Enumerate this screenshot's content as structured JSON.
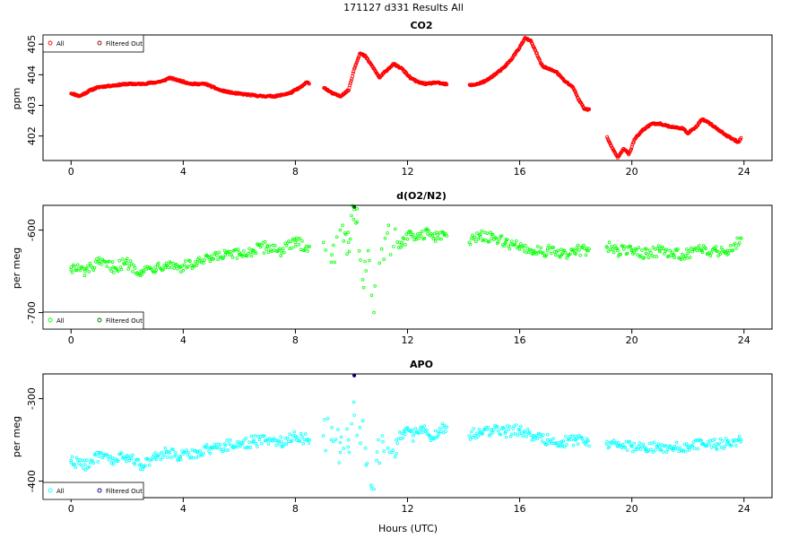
{
  "page": {
    "title": "171127   d331   Results All",
    "xlabel": "Hours (UTC)"
  },
  "legend": {
    "all_label": "All",
    "filtered_label": "Filtered Out"
  },
  "colors": {
    "co2": "#ff0000",
    "o2n2": "#00ff00",
    "apo": "#00ffff",
    "co2_filtered": "#8b0000",
    "o2n2_filtered": "#006400",
    "apo_filtered": "#000080"
  },
  "chart_data": [
    {
      "type": "scatter",
      "title": "CO2",
      "xlabel": "",
      "ylabel": "ppm",
      "xlim": [
        -1,
        25
      ],
      "ylim": [
        401.2,
        405.3
      ],
      "xticks": [
        0,
        4,
        8,
        12,
        16,
        20,
        24
      ],
      "yticks": [
        402,
        403,
        404,
        405
      ],
      "legend_position": "top-left",
      "gaps": [
        [
          8.5,
          9.0
        ],
        [
          13.4,
          14.2
        ],
        [
          18.5,
          19.1
        ]
      ],
      "series_all": {
        "name": "All",
        "color": "#ff0000",
        "x": [
          0.0,
          0.3,
          0.7,
          1.0,
          1.5,
          2.0,
          2.5,
          3.0,
          3.3,
          3.5,
          3.9,
          4.3,
          4.8,
          5.3,
          5.8,
          6.3,
          6.8,
          7.3,
          7.8,
          8.2,
          8.4,
          9.0,
          9.3,
          9.6,
          9.9,
          10.1,
          10.3,
          10.5,
          10.8,
          11.0,
          11.2,
          11.5,
          11.8,
          12.1,
          12.4,
          12.7,
          13.0,
          13.3,
          14.2,
          14.5,
          14.8,
          15.1,
          15.4,
          15.7,
          16.0,
          16.2,
          16.4,
          16.6,
          16.8,
          17.0,
          17.3,
          17.6,
          17.9,
          18.1,
          18.3,
          18.5,
          19.1,
          19.3,
          19.5,
          19.7,
          19.9,
          20.1,
          20.4,
          20.7,
          21.0,
          21.4,
          21.8,
          22.0,
          22.3,
          22.5,
          22.8,
          23.1,
          23.4,
          23.8,
          23.9
        ],
        "y": [
          403.4,
          403.3,
          403.5,
          403.6,
          403.65,
          403.7,
          403.7,
          403.75,
          403.8,
          403.9,
          403.8,
          403.7,
          403.7,
          403.5,
          403.4,
          403.35,
          403.3,
          403.3,
          403.4,
          403.6,
          403.75,
          403.6,
          403.4,
          403.3,
          403.5,
          404.2,
          404.7,
          404.6,
          404.2,
          403.9,
          404.1,
          404.35,
          404.2,
          403.9,
          403.75,
          403.7,
          403.75,
          403.7,
          403.65,
          403.7,
          403.8,
          404.0,
          404.2,
          404.5,
          404.9,
          405.2,
          405.1,
          404.7,
          404.3,
          404.2,
          404.1,
          403.8,
          403.6,
          403.2,
          402.9,
          402.85,
          402.0,
          401.6,
          401.3,
          401.6,
          401.4,
          401.9,
          402.2,
          402.4,
          402.4,
          402.3,
          402.25,
          402.1,
          402.3,
          402.55,
          402.4,
          402.2,
          402.0,
          401.8,
          401.95
        ]
      },
      "series_filtered": {
        "name": "Filtered Out",
        "x": [],
        "y": []
      }
    },
    {
      "type": "scatter",
      "title": "d(O2/N2)",
      "xlabel": "",
      "ylabel": "per meg",
      "xlim": [
        -1,
        25
      ],
      "ylim": [
        -720,
        -570
      ],
      "xticks": [
        0,
        4,
        8,
        12,
        16,
        20,
        24
      ],
      "yticks": [
        -700,
        -600
      ],
      "legend_position": "bottom-left",
      "series_all": {
        "name": "All",
        "color": "#00ff00",
        "x": [
          0.0,
          0.5,
          1.0,
          1.5,
          2.0,
          2.5,
          3.0,
          3.4,
          3.9,
          4.5,
          5.0,
          5.5,
          6.0,
          6.5,
          7.0,
          7.5,
          8.0,
          8.5,
          9.0,
          9.3,
          9.6,
          9.9,
          10.1,
          10.2,
          10.4,
          10.6,
          10.8,
          11.0,
          11.2,
          11.5,
          11.8,
          12.1,
          12.4,
          12.7,
          13.0,
          13.3,
          14.2,
          14.6,
          15.0,
          15.5,
          16.0,
          16.5,
          17.0,
          17.5,
          18.0,
          18.4,
          19.1,
          19.5,
          20.0,
          20.5,
          21.0,
          21.5,
          22.0,
          22.5,
          23.0,
          23.4,
          23.9
        ],
        "y": [
          -645,
          -650,
          -640,
          -645,
          -640,
          -650,
          -645,
          -640,
          -645,
          -640,
          -635,
          -630,
          -630,
          -625,
          -620,
          -625,
          -615,
          -620,
          -615,
          -630,
          -600,
          -615,
          -575,
          -590,
          -660,
          -625,
          -700,
          -640,
          -610,
          -620,
          -615,
          -605,
          -610,
          -600,
          -610,
          -605,
          -615,
          -605,
          -610,
          -615,
          -620,
          -625,
          -625,
          -630,
          -625,
          -625,
          -620,
          -625,
          -625,
          -628,
          -625,
          -630,
          -628,
          -625,
          -625,
          -625,
          -610
        ]
      },
      "series_filtered": {
        "name": "Filtered Out",
        "color": "#006400",
        "x": [
          10.1
        ],
        "y": [
          -572
        ]
      }
    },
    {
      "type": "scatter",
      "title": "APO",
      "xlabel": "Hours (UTC)",
      "ylabel": "per meg",
      "xlim": [
        -1,
        25
      ],
      "ylim": [
        -420,
        -270
      ],
      "xticks": [
        0,
        4,
        8,
        12,
        16,
        20,
        24
      ],
      "yticks": [
        -400,
        -300
      ],
      "legend_position": "bottom-left",
      "series_all": {
        "name": "All",
        "color": "#00ffff",
        "x": [
          0.0,
          0.5,
          1.0,
          1.5,
          2.0,
          2.5,
          3.0,
          3.4,
          3.9,
          4.5,
          5.0,
          5.5,
          6.0,
          6.5,
          7.0,
          7.5,
          8.0,
          8.5,
          9.0,
          9.3,
          9.6,
          9.9,
          10.1,
          10.3,
          10.5,
          10.7,
          10.9,
          11.1,
          11.3,
          11.6,
          11.9,
          12.2,
          12.5,
          12.8,
          13.1,
          13.3,
          14.2,
          14.6,
          15.0,
          15.5,
          16.0,
          16.5,
          17.0,
          17.5,
          18.0,
          18.4,
          19.1,
          19.5,
          20.0,
          20.5,
          21.0,
          21.5,
          22.0,
          22.5,
          23.0,
          23.4,
          23.9
        ],
        "y": [
          -375,
          -380,
          -370,
          -375,
          -370,
          -380,
          -372,
          -365,
          -370,
          -365,
          -360,
          -357,
          -355,
          -352,
          -350,
          -352,
          -345,
          -350,
          -345,
          -335,
          -365,
          -350,
          -320,
          -335,
          -360,
          -405,
          -375,
          -345,
          -360,
          -350,
          -340,
          -345,
          -335,
          -345,
          -340,
          -335,
          -345,
          -340,
          -338,
          -340,
          -338,
          -345,
          -350,
          -352,
          -350,
          -352,
          -355,
          -358,
          -358,
          -360,
          -358,
          -360,
          -358,
          -355,
          -355,
          -355,
          -350
        ]
      },
      "series_filtered": {
        "name": "Filtered Out",
        "color": "#000080",
        "x": [
          10.1
        ],
        "y": [
          -272
        ]
      }
    }
  ]
}
